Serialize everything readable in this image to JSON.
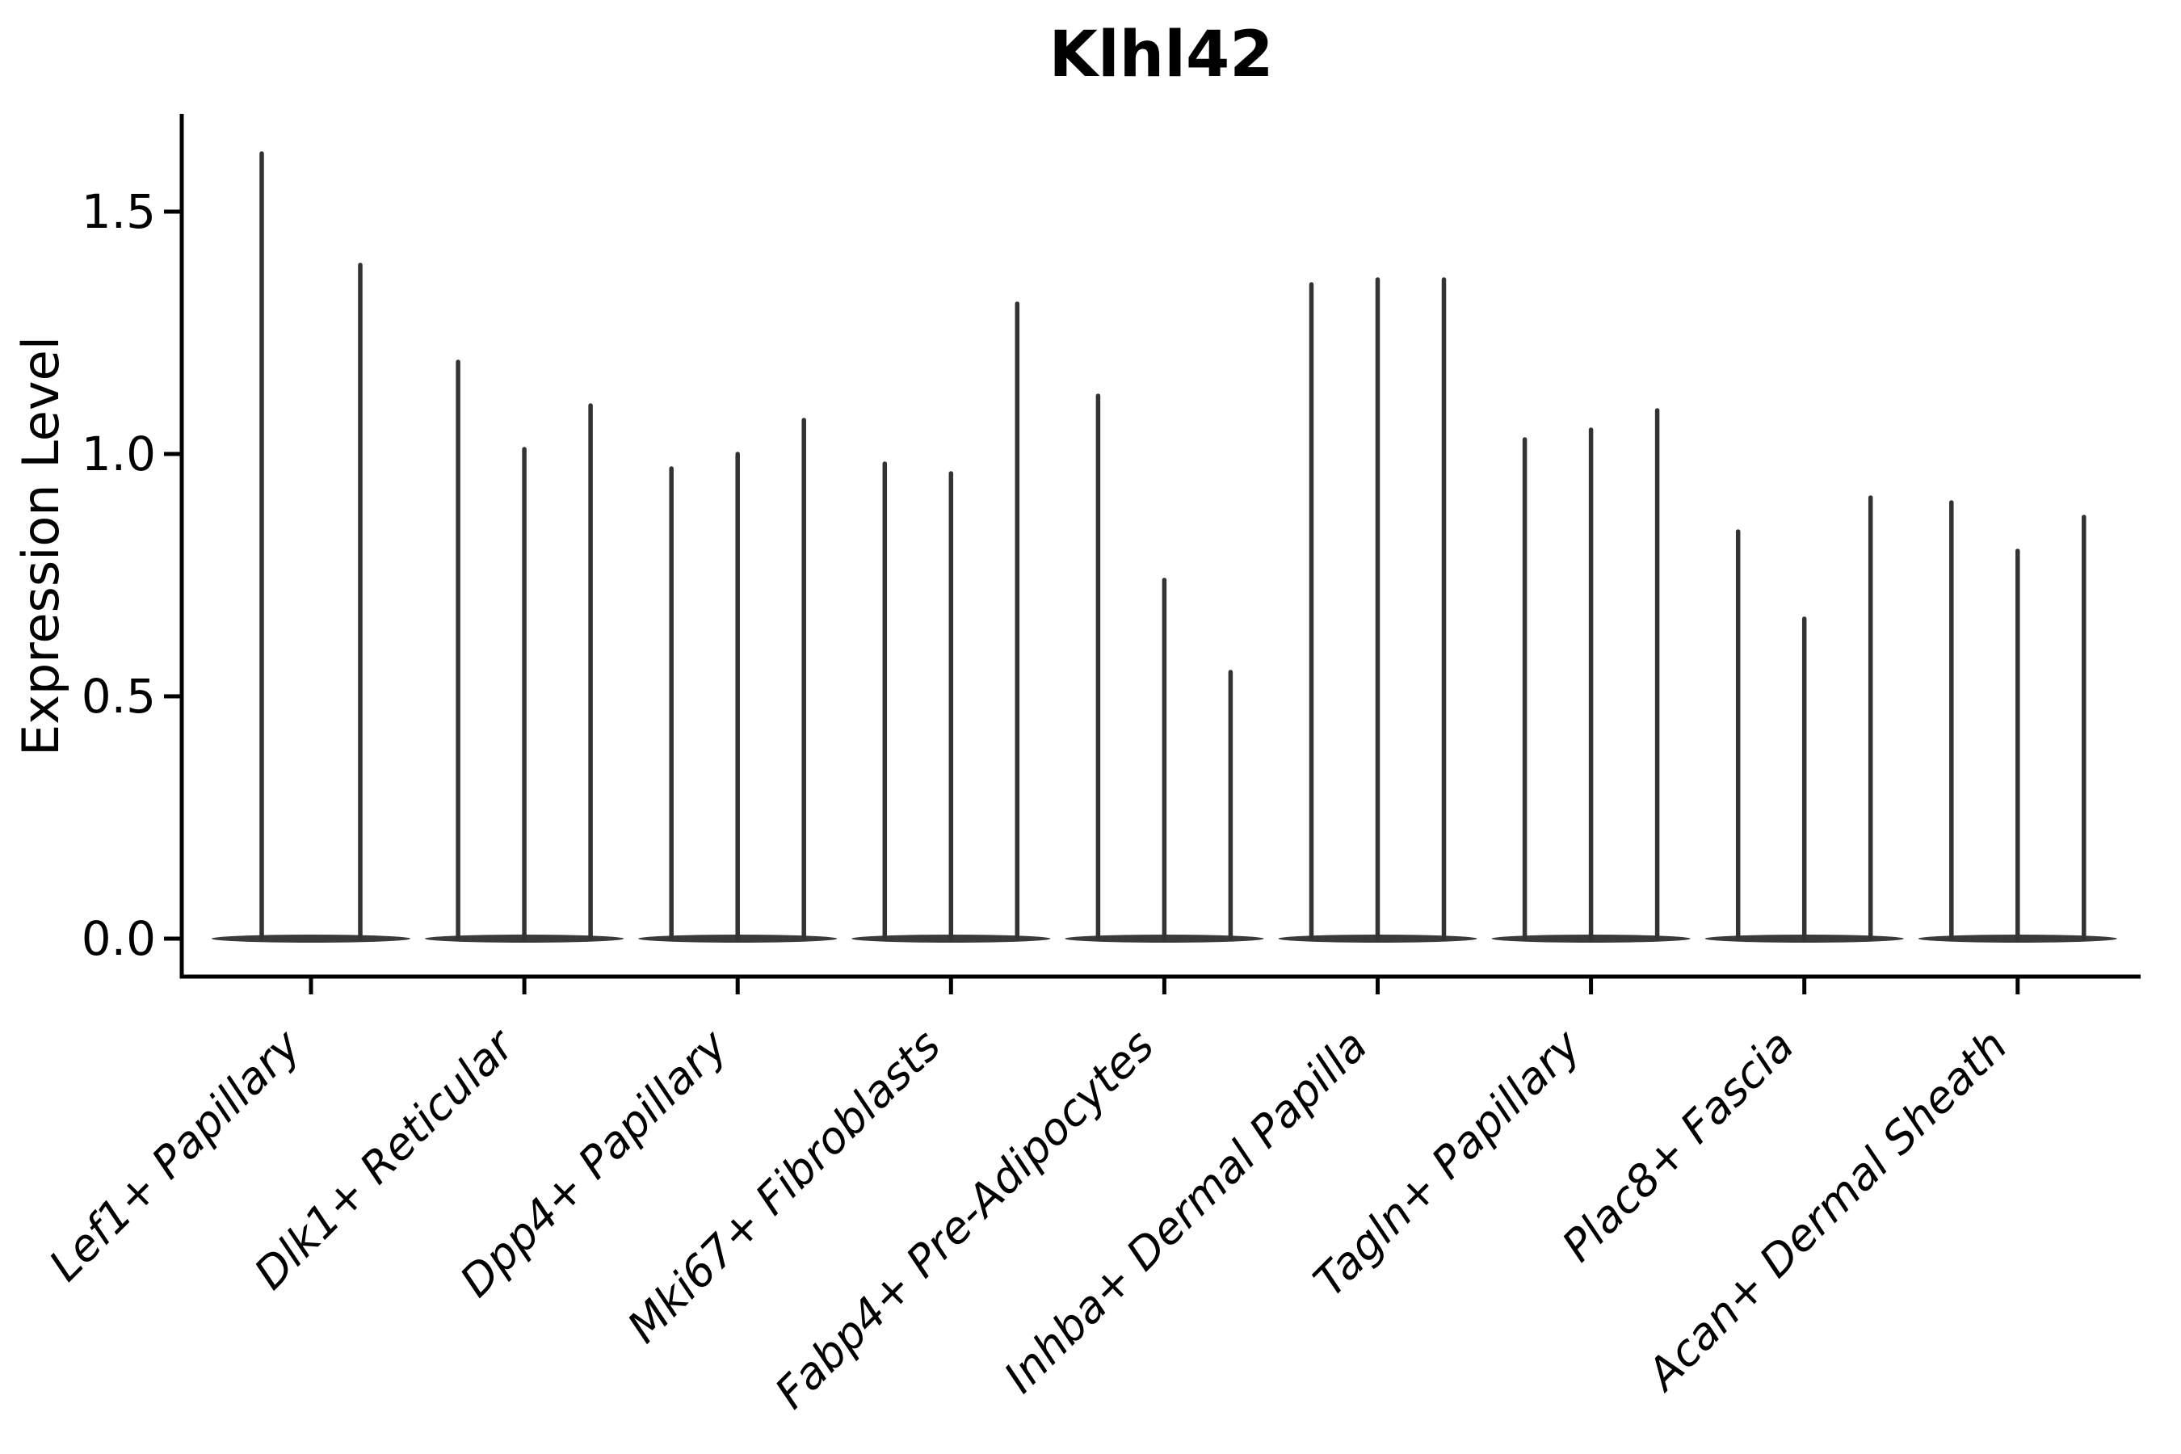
{
  "figure": {
    "background": "#ffffff"
  },
  "chart_data": {
    "type": "violin",
    "title": "Klhl42",
    "ylabel": "Expression Level",
    "xlabel": "",
    "grid": false,
    "legend": null,
    "ylim": [
      -0.08,
      1.7
    ],
    "ytick_labels": [
      "0.0",
      "0.5",
      "1.0",
      "1.5"
    ],
    "categories": [
      "Lef1+ Papillary",
      "Dlk1+ Reticular",
      "Dpp4+ Papillary",
      "Mki67+ Fibroblasts",
      "Fabp4+ Pre-Adipocytes",
      "Inhba+ Dermal Papilla",
      "Tagln+ Papillary",
      "Plac8+ Fascia",
      "Acan+ Dermal Sheath"
    ],
    "series": [
      {
        "category": "Lef1+ Papillary",
        "spike_values": [
          1.62,
          1.39
        ]
      },
      {
        "category": "Dlk1+ Reticular",
        "spike_values": [
          1.19,
          1.01,
          1.1
        ]
      },
      {
        "category": "Dpp4+ Papillary",
        "spike_values": [
          0.97,
          1.0,
          1.07
        ]
      },
      {
        "category": "Mki67+ Fibroblasts",
        "spike_values": [
          0.98,
          0.96,
          1.31
        ]
      },
      {
        "category": "Fabp4+ Pre-Adipocytes",
        "spike_values": [
          1.12,
          0.74,
          0.55
        ]
      },
      {
        "category": "Inhba+ Dermal Papilla",
        "spike_values": [
          1.35,
          1.36,
          1.36
        ]
      },
      {
        "category": "Tagln+ Papillary",
        "spike_values": [
          1.03,
          1.05,
          1.09
        ]
      },
      {
        "category": "Plac8+ Fascia",
        "spike_values": [
          0.84,
          0.66,
          0.91
        ]
      },
      {
        "category": "Acan+ Dermal Sheath",
        "spike_values": [
          0.9,
          0.8,
          0.87
        ]
      }
    ],
    "violin_note": "each category shows a flat dense base at 0 with thin density spikes reaching the listed max expression values",
    "colors": {
      "violin_fill": "#3a3a3a",
      "spike": "#333333",
      "axis": "#000000",
      "text": "#000000"
    }
  }
}
